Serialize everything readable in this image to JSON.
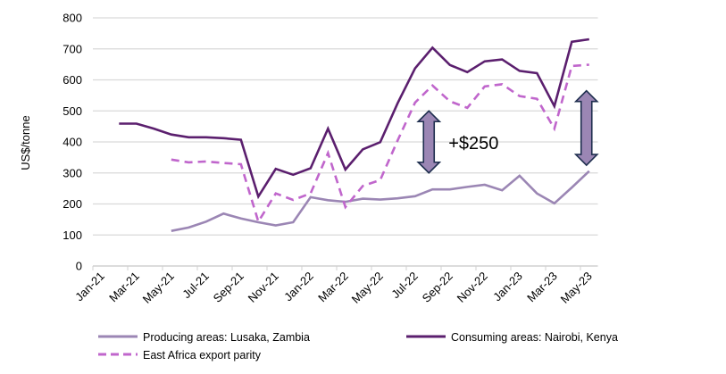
{
  "chart_data": {
    "type": "line",
    "title": "",
    "xlabel": "",
    "ylabel": "US$/tonne",
    "ylim": [
      0,
      800
    ],
    "yticks": [
      "0",
      "100",
      "200",
      "300",
      "400",
      "500",
      "600",
      "700",
      "800"
    ],
    "grid": true,
    "legend_position": "bottom",
    "categories": [
      "Jan-21",
      "Feb-21",
      "Mar-21",
      "Apr-21",
      "May-21",
      "Jun-21",
      "Jul-21",
      "Aug-21",
      "Sep-21",
      "Oct-21",
      "Nov-21",
      "Dec-21",
      "Jan-22",
      "Feb-22",
      "Mar-22",
      "Apr-22",
      "May-22",
      "Jun-22",
      "Jul-22",
      "Aug-22",
      "Sep-22",
      "Oct-22",
      "Nov-22",
      "Dec-22",
      "Jan-23",
      "Feb-23",
      "Mar-23",
      "Apr-23",
      "May-23"
    ],
    "xtick_labels": [
      "Jan-21",
      "Mar-21",
      "May-21",
      "Jul-21",
      "Sep-21",
      "Nov-21",
      "Jan-22",
      "Mar-22",
      "May-22",
      "Jul-22",
      "Sep-22",
      "Nov-22",
      "Jan-23",
      "Mar-23",
      "May-23"
    ],
    "series": [
      {
        "name": "Producing areas: Lusaka, Zambia",
        "color": "#9b86b4",
        "dash": false,
        "values": [
          null,
          null,
          null,
          null,
          113,
          124,
          143,
          169,
          153,
          141,
          131,
          141,
          222,
          212,
          207,
          217,
          214,
          218,
          225,
          247,
          247,
          255,
          262,
          244,
          291,
          234,
          202,
          253,
          306
        ]
      },
      {
        "name": "Consuming areas: Nairobi, Kenya",
        "color": "#5b1f6e",
        "dash": false,
        "values": [
          null,
          459,
          459,
          443,
          424,
          415,
          415,
          412,
          407,
          224,
          313,
          294,
          315,
          443,
          311,
          376,
          399,
          525,
          637,
          704,
          648,
          625,
          660,
          666,
          629,
          622,
          515,
          723,
          731
        ]
      },
      {
        "name": "East Africa export parity",
        "color": "#c066cc",
        "dash": true,
        "values": [
          null,
          null,
          null,
          null,
          343,
          334,
          337,
          332,
          328,
          143,
          234,
          213,
          234,
          364,
          190,
          258,
          277,
          405,
          527,
          582,
          531,
          510,
          579,
          586,
          548,
          539,
          443,
          645,
          649
        ]
      }
    ],
    "annotations": [
      {
        "text": "+$250",
        "arrow_month": "Aug-22",
        "arrow_from": 300,
        "arrow_to": 500
      },
      {
        "text": "",
        "arrow_month": "May-23",
        "arrow_from": 325,
        "arrow_to": 565
      }
    ],
    "arrow_fill": "#9b86b4",
    "arrow_stroke": "#1f2f4f"
  }
}
